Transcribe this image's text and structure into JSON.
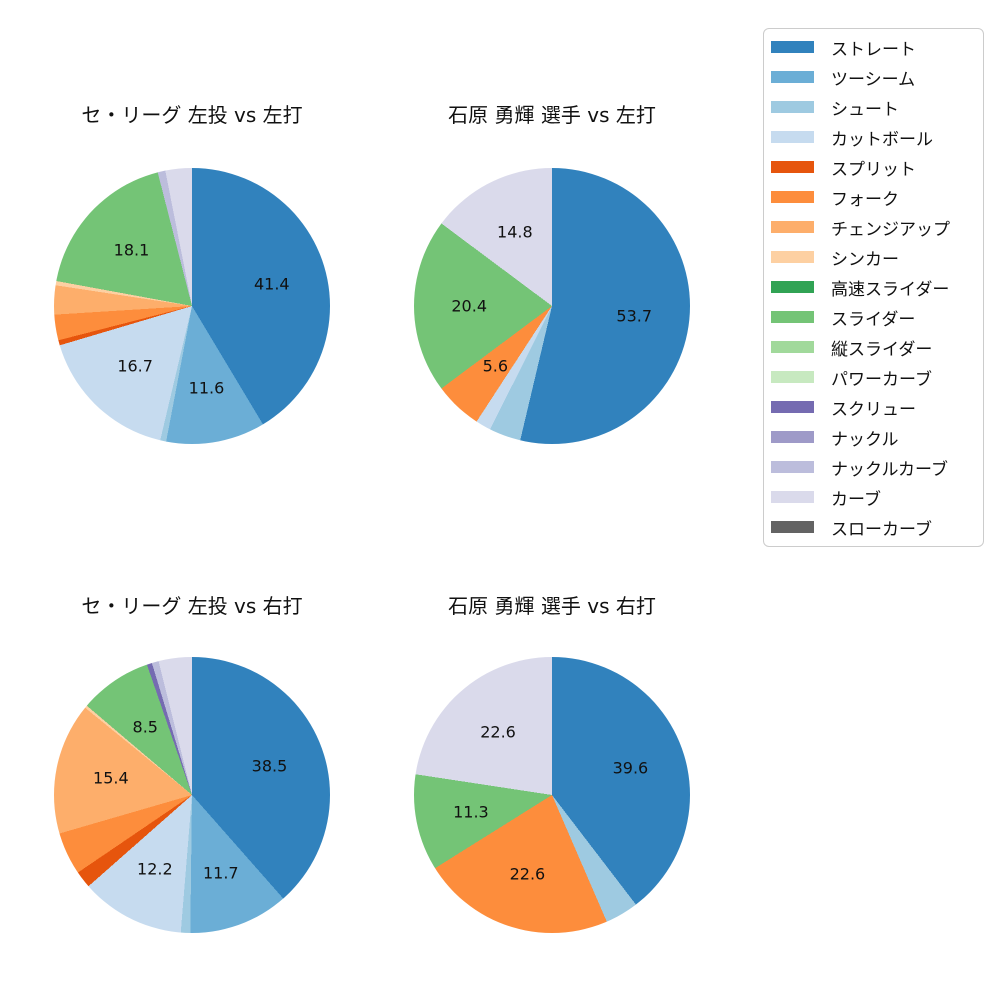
{
  "legend": {
    "items": [
      {
        "label": "ストレート",
        "color": "#3182bd"
      },
      {
        "label": "ツーシーム",
        "color": "#6baed6"
      },
      {
        "label": "シュート",
        "color": "#9ecae1"
      },
      {
        "label": "カットボール",
        "color": "#c6dbef"
      },
      {
        "label": "スプリット",
        "color": "#e6550d"
      },
      {
        "label": "フォーク",
        "color": "#fd8d3c"
      },
      {
        "label": "チェンジアップ",
        "color": "#fdae6b"
      },
      {
        "label": "シンカー",
        "color": "#fdd0a2"
      },
      {
        "label": "高速スライダー",
        "color": "#31a354"
      },
      {
        "label": "スライダー",
        "color": "#74c476"
      },
      {
        "label": "縦スライダー",
        "color": "#a1d99b"
      },
      {
        "label": "パワーカーブ",
        "color": "#c7e9c0"
      },
      {
        "label": "スクリュー",
        "color": "#756bb1"
      },
      {
        "label": "ナックル",
        "color": "#9e9ac8"
      },
      {
        "label": "ナックルカーブ",
        "color": "#bcbddc"
      },
      {
        "label": "カーブ",
        "color": "#dadaeb"
      },
      {
        "label": "スローカーブ",
        "color": "#636363"
      }
    ],
    "position": "upper right, outside plots"
  },
  "chart_data": [
    {
      "type": "pie",
      "title": "セ・リーグ 左投 vs 左打",
      "start_angle_deg": 0,
      "direction": "clockwise",
      "slices": [
        {
          "name": "ストレート",
          "value": 41.4,
          "label": "41.4"
        },
        {
          "name": "ツーシーム",
          "value": 11.6,
          "label": "11.6"
        },
        {
          "name": "シュート",
          "value": 0.7
        },
        {
          "name": "カットボール",
          "value": 16.7,
          "label": "16.7"
        },
        {
          "name": "スプリット",
          "value": 0.6
        },
        {
          "name": "フォーク",
          "value": 3.0
        },
        {
          "name": "チェンジアップ",
          "value": 3.4
        },
        {
          "name": "シンカー",
          "value": 0.5
        },
        {
          "name": "スライダー",
          "value": 18.1,
          "label": "18.1"
        },
        {
          "name": "ナックルカーブ",
          "value": 0.9
        },
        {
          "name": "カーブ",
          "value": 3.1
        }
      ]
    },
    {
      "type": "pie",
      "title": "石原 勇輝 選手 vs 左打",
      "start_angle_deg": 0,
      "direction": "clockwise",
      "slices": [
        {
          "name": "ストレート",
          "value": 53.7,
          "label": "53.7"
        },
        {
          "name": "シュート",
          "value": 3.7
        },
        {
          "name": "カットボール",
          "value": 1.8
        },
        {
          "name": "フォーク",
          "value": 5.6,
          "label": "5.6"
        },
        {
          "name": "スライダー",
          "value": 20.4,
          "label": "20.4"
        },
        {
          "name": "カーブ",
          "value": 14.8,
          "label": "14.8"
        }
      ]
    },
    {
      "type": "pie",
      "title": "セ・リーグ 左投 vs 右打",
      "start_angle_deg": 0,
      "direction": "clockwise",
      "slices": [
        {
          "name": "ストレート",
          "value": 38.5,
          "label": "38.5"
        },
        {
          "name": "ツーシーム",
          "value": 11.7,
          "label": "11.7"
        },
        {
          "name": "シュート",
          "value": 1.1
        },
        {
          "name": "カットボール",
          "value": 12.2,
          "label": "12.2"
        },
        {
          "name": "スプリット",
          "value": 2.0
        },
        {
          "name": "フォーク",
          "value": 5.0
        },
        {
          "name": "チェンジアップ",
          "value": 15.4,
          "label": "15.4"
        },
        {
          "name": "シンカー",
          "value": 0.3
        },
        {
          "name": "スライダー",
          "value": 8.5,
          "label": "8.5"
        },
        {
          "name": "スクリュー",
          "value": 0.6
        },
        {
          "name": "ナックルカーブ",
          "value": 0.8
        },
        {
          "name": "カーブ",
          "value": 3.9
        }
      ]
    },
    {
      "type": "pie",
      "title": "石原 勇輝 選手 vs 右打",
      "start_angle_deg": 0,
      "direction": "clockwise",
      "slices": [
        {
          "name": "ストレート",
          "value": 39.6,
          "label": "39.6"
        },
        {
          "name": "シュート",
          "value": 3.9
        },
        {
          "name": "フォーク",
          "value": 22.6,
          "label": "22.6"
        },
        {
          "name": "スライダー",
          "value": 11.3,
          "label": "11.3"
        },
        {
          "name": "カーブ",
          "value": 22.6,
          "label": "22.6"
        }
      ]
    }
  ]
}
